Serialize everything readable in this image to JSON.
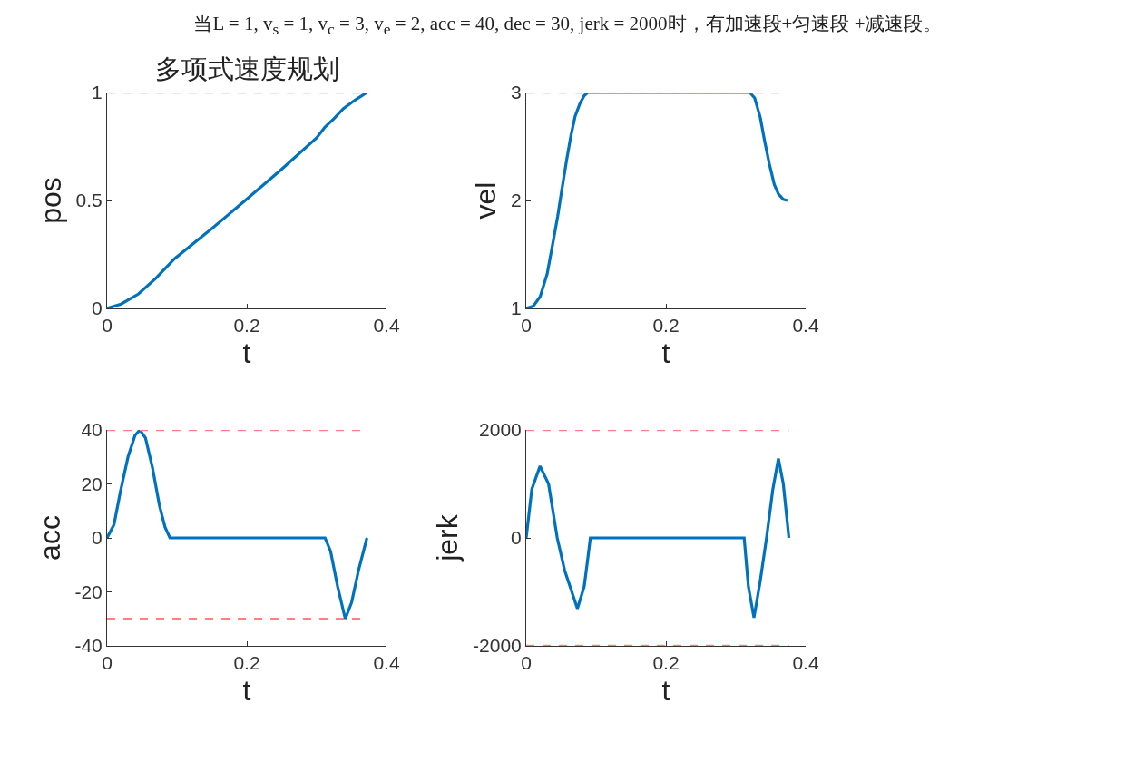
{
  "chart_data": [
    {
      "type": "line",
      "title": "多项式速度规划",
      "annotations": [
        "当L = 1, v$_{s}$ = 1, v$_{c}$ = 3, v$_{e}$ = 2, acc = 40, dec = 30, jerk = 2000时，有加速段+匀速段 +减速段。"
      ],
      "xlabel": "t",
      "ylabel": "pos",
      "xlim": [
        0,
        0.4
      ],
      "xticks": [
        0,
        0.2,
        0.4
      ],
      "ylim": [
        0,
        1
      ],
      "yticks": [
        0,
        0.5,
        1
      ],
      "series": [
        {
          "color": "#0072bd",
          "x": [
            0,
            0.02,
            0.045,
            0.07,
            0.0966,
            0.15,
            0.2,
            0.25,
            0.3,
            0.312,
            0.325,
            0.338,
            0.355,
            0.372
          ],
          "values": [
            0,
            0.02,
            0.067,
            0.14,
            0.23,
            0.37,
            0.506,
            0.645,
            0.79,
            0.84,
            0.88,
            0.925,
            0.965,
            1
          ]
        }
      ],
      "ref_lines": [
        {
          "axis": "y",
          "value": 1,
          "color": "#ff8080",
          "line_style": "dashed"
        }
      ]
    },
    {
      "type": "line",
      "xlabel": "t",
      "ylabel": "vel",
      "xlim": [
        0,
        0.4
      ],
      "xticks": [
        0,
        0.2,
        0.4
      ],
      "ylim": [
        1,
        3
      ],
      "yticks": [
        1,
        2,
        3
      ],
      "series": [
        {
          "color": "#0072bd",
          "x": [
            0,
            0.01,
            0.02,
            0.03,
            0.038,
            0.045,
            0.051,
            0.058,
            0.064,
            0.07,
            0.077,
            0.083,
            0.088,
            0.2,
            0.32,
            0.327,
            0.335,
            0.341,
            0.348,
            0.355,
            0.361,
            0.368,
            0.374
          ],
          "values": [
            1,
            1.02,
            1.11,
            1.32,
            1.6,
            1.85,
            2.1,
            2.38,
            2.6,
            2.78,
            2.9,
            2.97,
            3,
            3,
            3,
            2.95,
            2.77,
            2.56,
            2.34,
            2.15,
            2.06,
            2.01,
            2
          ]
        }
      ],
      "ref_lines": [
        {
          "axis": "y",
          "value": 3,
          "color": "#ff8080",
          "line_style": "dashed"
        }
      ]
    },
    {
      "type": "line",
      "xlabel": "t",
      "ylabel": "acc",
      "xlim": [
        0,
        0.4
      ],
      "xticks": [
        0,
        0.2,
        0.4
      ],
      "ylim": [
        -40,
        40
      ],
      "yticks": [
        -40,
        -20,
        0,
        20,
        40
      ],
      "series": [
        {
          "color": "#0072bd",
          "x": [
            0,
            0.01,
            0.019,
            0.03,
            0.04,
            0.047,
            0.055,
            0.065,
            0.075,
            0.083,
            0.09,
            0.2,
            0.312,
            0.32,
            0.33,
            0.341,
            0.35,
            0.36,
            0.372
          ],
          "values": [
            0,
            5,
            17,
            30,
            38,
            40,
            37,
            26,
            12,
            4,
            0,
            0,
            0,
            -5,
            -18,
            -30,
            -24,
            -12,
            0
          ]
        }
      ],
      "ref_lines": [
        {
          "axis": "y",
          "value": 40,
          "color": "#ff8080",
          "line_style": "dashed"
        },
        {
          "axis": "y",
          "value": -30,
          "color": "#ff8080",
          "line_style": "dashed"
        }
      ]
    },
    {
      "type": "line",
      "xlabel": "t",
      "ylabel": "jerk",
      "xlim": [
        0,
        0.4
      ],
      "xticks": [
        0,
        0.2,
        0.4
      ],
      "ylim": [
        -2000,
        2000
      ],
      "yticks": [
        -2000,
        0,
        2000
      ],
      "series": [
        {
          "color": "#0072bd",
          "x": [
            0,
            0.008,
            0.0198,
            0.032,
            0.0444,
            0.055,
            0.0733,
            0.083,
            0.088,
            0.0918,
            0.2,
            0.312,
            0.318,
            0.326,
            0.335,
            0.344,
            0.353,
            0.361,
            0.368,
            0.376
          ],
          "values": [
            0,
            900,
            1330,
            1000,
            0,
            -600,
            -1310,
            -900,
            -400,
            0,
            0,
            0,
            -900,
            -1480,
            -800,
            0,
            900,
            1470,
            1000,
            0
          ]
        }
      ],
      "ref_lines": [
        {
          "axis": "y",
          "value": 2000,
          "color": "#ff8080",
          "line_style": "dashed"
        },
        {
          "axis": "y",
          "value": -2000,
          "color": "#ff8080",
          "line_style": "dashed"
        }
      ]
    }
  ]
}
